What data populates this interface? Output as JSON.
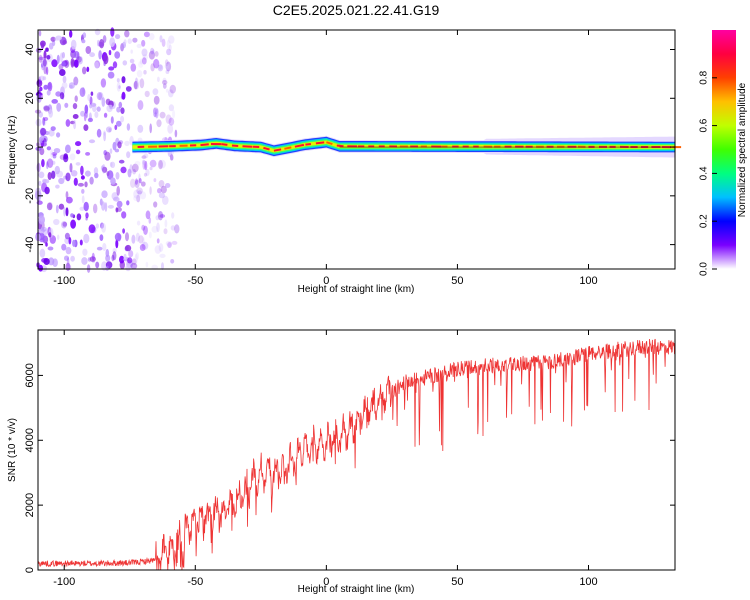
{
  "title": "C2E5.2025.021.22.41.G19",
  "chart_data": [
    {
      "type": "heatmap",
      "xlabel": "Height of straight line (km)",
      "ylabel": "Frequency (Hz)",
      "xlim": [
        -110,
        133
      ],
      "ylim": [
        -50,
        48
      ],
      "xticks": [
        -100,
        -50,
        0,
        50,
        100
      ],
      "yticks": [
        -40,
        -20,
        0,
        20,
        40
      ],
      "xtick_labels": [
        "-100",
        "-50",
        "0",
        "50",
        "100"
      ],
      "ytick_labels": [
        "-40",
        "-20",
        "0",
        "20",
        "40"
      ],
      "colorbar": {
        "label": "Normalized spectral amplitude",
        "range": [
          0,
          1
        ],
        "ticks": [
          0.0,
          0.2,
          0.4,
          0.6,
          0.8
        ],
        "tick_labels": [
          "0.0",
          "0.2",
          "0.4",
          "0.6",
          "0.8"
        ],
        "colors": [
          "#ffffff",
          "#7a00ff",
          "#0000ff",
          "#00c0ff",
          "#00ff80",
          "#40ff00",
          "#c0ff00",
          "#ffc000",
          "#ff4000",
          "#ff0040",
          "#ff00a0"
        ]
      },
      "noise_region_x": [
        -110,
        -65
      ],
      "carrier": {
        "x_start": -74,
        "freq_hz": 0,
        "wobble": [
          {
            "x": -74,
            "y": 0
          },
          {
            "x": -60,
            "y": 0.3
          },
          {
            "x": -48,
            "y": 0.8
          },
          {
            "x": -42,
            "y": 1.5
          },
          {
            "x": -35,
            "y": 0.5
          },
          {
            "x": -25,
            "y": 0
          },
          {
            "x": -20,
            "y": -1.5
          },
          {
            "x": -15,
            "y": -0.5
          },
          {
            "x": -8,
            "y": 1
          },
          {
            "x": 0,
            "y": 2
          },
          {
            "x": 5,
            "y": 0.3
          },
          {
            "x": 133,
            "y": 0
          }
        ]
      }
    },
    {
      "type": "line",
      "xlabel": "Height of straight line (km)",
      "ylabel": "SNR (10 * v/v)",
      "xlim": [
        -110,
        133
      ],
      "ylim": [
        0,
        7400
      ],
      "xticks": [
        -100,
        -50,
        0,
        50,
        100
      ],
      "yticks": [
        0,
        2000,
        4000,
        6000
      ],
      "xtick_labels": [
        "-100",
        "-50",
        "0",
        "50",
        "100"
      ],
      "ytick_labels": [
        "0",
        "2000",
        "4000",
        "6000"
      ],
      "color": "#ee3333",
      "series": [
        {
          "x": [
            -110,
            -90,
            -75,
            -65,
            -60,
            -55,
            -50,
            -45,
            -40,
            -35,
            -30,
            -25,
            -20,
            -15,
            -10,
            -5,
            0,
            5,
            10,
            15,
            20,
            25,
            30,
            35,
            40,
            50,
            60,
            70,
            80,
            90,
            100,
            110,
            120,
            133
          ],
          "values": [
            200,
            200,
            220,
            300,
            600,
            1100,
            1500,
            1700,
            1800,
            2100,
            2600,
            3000,
            3000,
            3200,
            3600,
            3800,
            3900,
            4100,
            4400,
            4900,
            5200,
            5500,
            5800,
            5900,
            6000,
            6200,
            6300,
            6400,
            6400,
            6500,
            6700,
            6800,
            6900,
            6900
          ]
        }
      ]
    }
  ]
}
